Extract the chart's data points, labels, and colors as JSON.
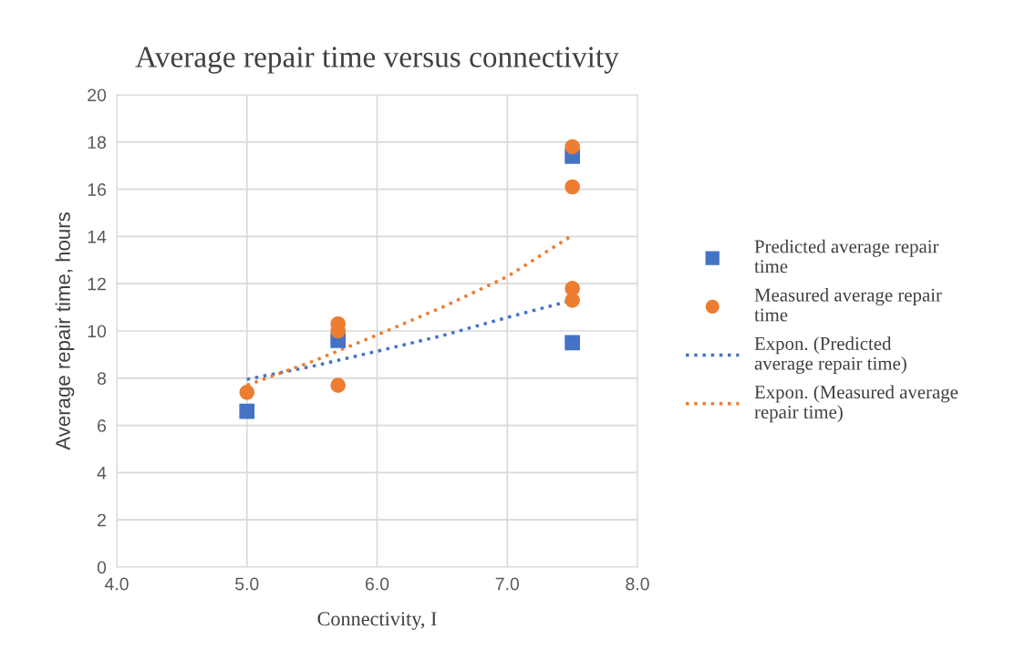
{
  "chart_data": {
    "type": "scatter",
    "title": "Average repair time versus connectivity",
    "xlabel": "Connectivity, I",
    "ylabel": "Average repair time, hours",
    "xlim": [
      4.0,
      8.0
    ],
    "xticks": [
      {
        "value": 4.0,
        "label": "4.0"
      },
      {
        "value": 5.0,
        "label": "5.0"
      },
      {
        "value": 6.0,
        "label": "6.0"
      },
      {
        "value": 7.0,
        "label": "7.0"
      },
      {
        "value": 8.0,
        "label": "8.0"
      }
    ],
    "ylim": [
      0,
      20
    ],
    "yticks": [
      0,
      2,
      4,
      6,
      8,
      10,
      12,
      14,
      16,
      18,
      20
    ],
    "grid": true,
    "legend": "right",
    "series": [
      {
        "name": "Predicted average repair time",
        "marker": "square",
        "color": "#4472c4",
        "x": [
          5.0,
          5.7,
          7.5,
          7.5
        ],
        "values": [
          6.6,
          9.6,
          17.4,
          9.5
        ]
      },
      {
        "name": "Measured average repair time",
        "marker": "circle",
        "color": "#ed7d31",
        "x": [
          5.0,
          5.7,
          5.7,
          5.7,
          7.5,
          7.5,
          7.5,
          7.5
        ],
        "values": [
          7.4,
          10.3,
          10.0,
          7.7,
          17.8,
          16.1,
          11.8,
          11.3
        ]
      },
      {
        "name": "Expon. (Predicted average repair time)",
        "type": "line",
        "line_style": "dotted",
        "color": "#4472c4",
        "x": [
          5.0,
          5.5,
          6.0,
          6.5,
          7.0,
          7.5
        ],
        "values": [
          7.95,
          8.5,
          9.14,
          9.8,
          10.57,
          11.3
        ]
      },
      {
        "name": "Expon. (Measured average repair time)",
        "type": "line",
        "line_style": "dotted",
        "color": "#ed7d31",
        "x": [
          5.0,
          5.5,
          6.0,
          6.5,
          7.0,
          7.5
        ],
        "values": [
          7.7,
          8.7,
          9.83,
          11.0,
          12.3,
          14.05
        ]
      }
    ]
  }
}
